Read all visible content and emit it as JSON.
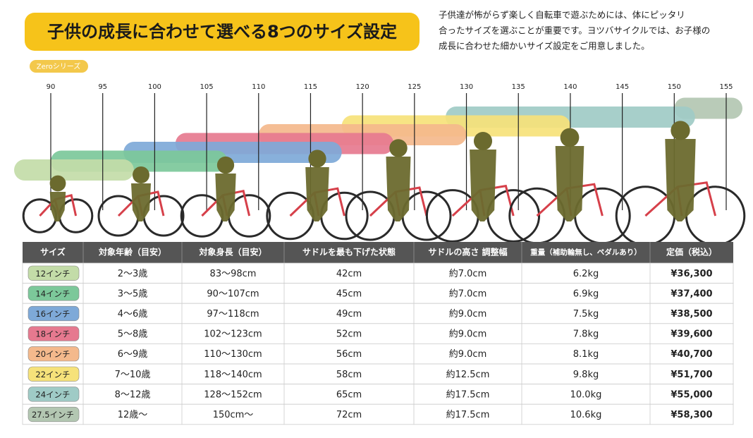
{
  "header": {
    "title": "子供の成長に合わせて選べる8つのサイズ設定",
    "description": [
      "子供達が怖がらず楽しく自転車で遊ぶためには、体にピッタリ",
      "合ったサイズを選ぶことが重要です。ヨツバサイクルでは、お子様の",
      "成長に合わせた細かいサイズ設定をご用意しました。"
    ],
    "badge": "Zeroシリーズ"
  },
  "scale": {
    "ticks": [
      90,
      95,
      100,
      105,
      110,
      115,
      120,
      125,
      130,
      135,
      140,
      145,
      150,
      155
    ]
  },
  "bands": [
    {
      "from": 83,
      "to": 98,
      "color": "#c3dca8"
    },
    {
      "from": 90,
      "to": 107,
      "color": "#7cc89a"
    },
    {
      "from": 97,
      "to": 118,
      "color": "#7ea9d8"
    },
    {
      "from": 102,
      "to": 123,
      "color": "#e6798f"
    },
    {
      "from": 110,
      "to": 130,
      "color": "#f4b98c"
    },
    {
      "from": 118,
      "to": 140,
      "color": "#f6e27a"
    },
    {
      "from": 128,
      "to": 152,
      "color": "#9fcbc6"
    },
    {
      "from": 150,
      "to": 157,
      "color": "#b3c7b2"
    }
  ],
  "table": {
    "headers": [
      "サイズ",
      "対象年齢（目安）",
      "対象身長（目安）",
      "サドルを最も下げた状態",
      "サドルの高さ 調整幅",
      "重量（補助輪無し、ペダルあり）",
      "定価（税込）"
    ],
    "rows": [
      [
        "12インチ",
        "2〜3歳",
        "83〜98cm",
        "42cm",
        "約7.0cm",
        "6.2kg",
        "¥36,300"
      ],
      [
        "14インチ",
        "3〜5歳",
        "90〜107cm",
        "45cm",
        "約7.0cm",
        "6.9kg",
        "¥37,400"
      ],
      [
        "16インチ",
        "4〜6歳",
        "97〜118cm",
        "49cm",
        "約9.0cm",
        "7.5kg",
        "¥38,500"
      ],
      [
        "18インチ",
        "5〜8歳",
        "102〜123cm",
        "52cm",
        "約9.0cm",
        "7.8kg",
        "¥39,600"
      ],
      [
        "20インチ",
        "6〜9歳",
        "110〜130cm",
        "56cm",
        "約9.0cm",
        "8.1kg",
        "¥40,700"
      ],
      [
        "22インチ",
        "7〜10歳",
        "118〜140cm",
        "58cm",
        "約12.5cm",
        "9.8kg",
        "¥51,700"
      ],
      [
        "24インチ",
        "8〜12歳",
        "128〜152cm",
        "65cm",
        "約17.5cm",
        "10.0kg",
        "¥55,000"
      ],
      [
        "27.5インチ",
        "12歳〜",
        "150cm〜",
        "72cm",
        "約17.5cm",
        "10.6kg",
        "¥58,300"
      ]
    ]
  }
}
